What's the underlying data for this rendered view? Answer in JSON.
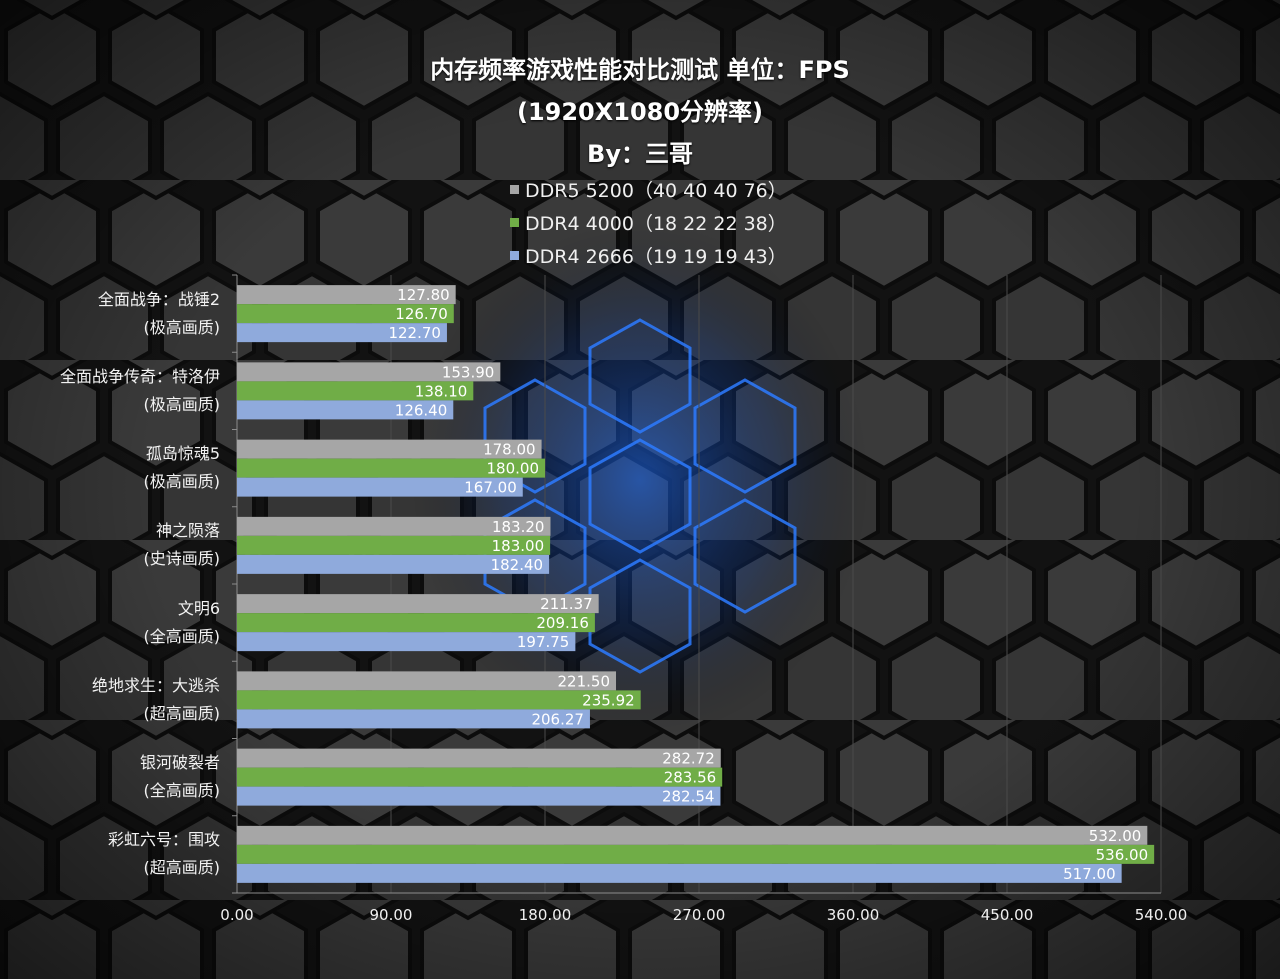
{
  "chart_data": {
    "type": "bar",
    "orientation": "horizontal",
    "title": "内存频率游戏性能对比测试 单位：FPS",
    "subtitle": "(1920X1080分辨率)",
    "author": "By：三哥",
    "categories": [
      {
        "line1": "全面战争：战锤2",
        "line2": "(极高画质)"
      },
      {
        "line1": "全面战争传奇：特洛伊",
        "line2": "(极高画质)"
      },
      {
        "line1": "孤岛惊魂5",
        "line2": "(极高画质)"
      },
      {
        "line1": "神之陨落",
        "line2": "(史诗画质)"
      },
      {
        "line1": "文明6",
        "line2": "(全高画质)"
      },
      {
        "line1": "绝地求生：大逃杀",
        "line2": "(超高画质)"
      },
      {
        "line1": "银河破裂者",
        "line2": "(全高画质)"
      },
      {
        "line1": "彩虹六号：围攻",
        "line2": "(超高画质)"
      }
    ],
    "series": [
      {
        "name": "DDR5 5200（40 40 40 76）",
        "color": "#a6a6a6",
        "values": [
          127.8,
          153.9,
          178.0,
          183.2,
          211.37,
          221.5,
          282.72,
          532.0
        ]
      },
      {
        "name": "DDR4 4000（18 22 22 38）",
        "color": "#70ad47",
        "values": [
          126.7,
          138.1,
          180.0,
          183.0,
          209.16,
          235.92,
          283.56,
          536.0
        ]
      },
      {
        "name": "DDR4 2666（19 19 19 43）",
        "color": "#8faadc",
        "values": [
          122.7,
          126.4,
          167.0,
          182.4,
          197.75,
          206.27,
          282.54,
          517.0
        ]
      }
    ],
    "xlim": [
      0,
      540
    ],
    "xticks": [
      "0.00",
      "90.00",
      "180.00",
      "270.00",
      "360.00",
      "450.00",
      "540.00"
    ],
    "grid": "vertical",
    "legend_position": "top"
  }
}
